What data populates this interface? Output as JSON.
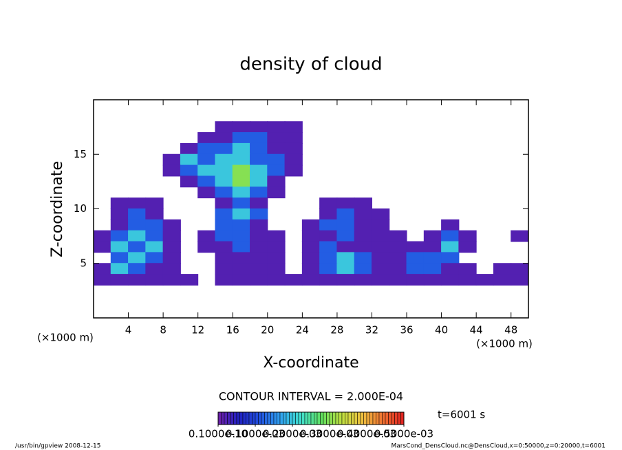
{
  "chart_data": {
    "type": "contour",
    "title": "density of cloud",
    "xlabel": "X-coordinate",
    "ylabel": "Z-coordinate",
    "xunit": "(×1000 m)",
    "yunit": "(×1000 m)",
    "xlim": [
      0,
      50
    ],
    "ylim": [
      0,
      20
    ],
    "xticks": [
      4,
      8,
      12,
      16,
      20,
      24,
      28,
      32,
      36,
      40,
      44,
      48
    ],
    "yticks": [
      5,
      10,
      15
    ],
    "x": [
      1,
      3,
      5,
      7,
      9,
      11,
      13,
      15,
      17,
      19,
      21,
      23,
      25,
      27,
      29,
      31,
      33,
      35,
      37,
      39,
      41,
      43,
      45,
      47,
      49
    ],
    "y": [
      17.5,
      16.5,
      15.5,
      14.5,
      13.5,
      12.5,
      11.5,
      10.5,
      9.5,
      8.5,
      7.5,
      6.5,
      5.5,
      4.5,
      3.5
    ],
    "z": [
      [
        null,
        null,
        null,
        null,
        null,
        null,
        null,
        2e-05,
        2e-05,
        2e-05,
        2e-05,
        2e-05,
        null,
        null,
        null,
        null,
        null,
        null,
        null,
        null,
        null,
        null,
        null,
        null,
        null
      ],
      [
        null,
        null,
        null,
        null,
        null,
        null,
        2e-05,
        2e-05,
        0.00012,
        0.00012,
        2e-05,
        2e-05,
        null,
        null,
        null,
        null,
        null,
        null,
        null,
        null,
        null,
        null,
        null,
        null,
        null
      ],
      [
        null,
        null,
        null,
        null,
        null,
        2e-05,
        0.00012,
        0.00012,
        0.0002,
        0.00012,
        2e-05,
        2e-05,
        null,
        null,
        null,
        null,
        null,
        null,
        null,
        null,
        null,
        null,
        null,
        null,
        null
      ],
      [
        null,
        null,
        null,
        null,
        2e-05,
        0.0002,
        0.00012,
        0.0002,
        0.0002,
        0.00012,
        0.00012,
        2e-05,
        null,
        null,
        null,
        null,
        null,
        null,
        null,
        null,
        null,
        null,
        null,
        null,
        null
      ],
      [
        null,
        null,
        null,
        null,
        2e-05,
        0.00012,
        0.0002,
        0.0002,
        0.0003,
        0.0002,
        0.00012,
        2e-05,
        null,
        null,
        null,
        null,
        null,
        null,
        null,
        null,
        null,
        null,
        null,
        null,
        null
      ],
      [
        null,
        null,
        null,
        null,
        null,
        2e-05,
        0.00012,
        0.0002,
        0.0003,
        0.0002,
        2e-05,
        null,
        null,
        null,
        null,
        null,
        null,
        null,
        null,
        null,
        null,
        null,
        null,
        null,
        null
      ],
      [
        null,
        null,
        null,
        null,
        null,
        null,
        2e-05,
        0.00012,
        0.0002,
        0.00012,
        2e-05,
        null,
        null,
        null,
        null,
        null,
        null,
        null,
        null,
        null,
        null,
        null,
        null,
        null,
        null
      ],
      [
        null,
        2e-05,
        2e-05,
        2e-05,
        null,
        null,
        null,
        2e-05,
        0.00012,
        2e-05,
        null,
        null,
        null,
        2e-05,
        2e-05,
        2e-05,
        null,
        null,
        null,
        null,
        null,
        null,
        null,
        null,
        null
      ],
      [
        null,
        2e-05,
        0.00012,
        2e-05,
        null,
        null,
        null,
        0.00012,
        0.0002,
        0.00012,
        null,
        null,
        null,
        2e-05,
        0.00012,
        2e-05,
        2e-05,
        null,
        null,
        null,
        null,
        null,
        null,
        null,
        null
      ],
      [
        null,
        2e-05,
        0.00012,
        0.00012,
        2e-05,
        null,
        null,
        0.00012,
        0.00012,
        2e-05,
        null,
        null,
        2e-05,
        0.00012,
        0.00012,
        2e-05,
        2e-05,
        null,
        null,
        null,
        2e-05,
        null,
        null,
        null,
        null
      ],
      [
        2e-05,
        0.00012,
        0.0002,
        0.00012,
        2e-05,
        null,
        2e-05,
        0.00012,
        0.00012,
        2e-05,
        2e-05,
        null,
        2e-05,
        2e-05,
        0.00012,
        2e-05,
        2e-05,
        2e-05,
        null,
        2e-05,
        0.00012,
        2e-05,
        null,
        null,
        2e-05
      ],
      [
        2e-05,
        0.0002,
        0.00012,
        0.0002,
        2e-05,
        null,
        2e-05,
        2e-05,
        0.00012,
        2e-05,
        2e-05,
        null,
        2e-05,
        0.00012,
        2e-05,
        2e-05,
        2e-05,
        2e-05,
        2e-05,
        2e-05,
        0.0002,
        2e-05,
        null,
        null,
        null
      ],
      [
        null,
        0.00012,
        0.0002,
        0.00012,
        2e-05,
        null,
        null,
        2e-05,
        2e-05,
        2e-05,
        2e-05,
        null,
        2e-05,
        0.00012,
        0.0002,
        0.00012,
        2e-05,
        2e-05,
        0.00012,
        0.00012,
        0.00012,
        null,
        null,
        null,
        null
      ],
      [
        2e-05,
        0.0002,
        0.00012,
        2e-05,
        2e-05,
        null,
        null,
        2e-05,
        2e-05,
        2e-05,
        2e-05,
        null,
        2e-05,
        0.00012,
        0.0002,
        0.00012,
        2e-05,
        2e-05,
        0.00012,
        0.00012,
        2e-05,
        2e-05,
        null,
        2e-05,
        2e-05
      ],
      [
        2e-05,
        2e-05,
        2e-05,
        2e-05,
        2e-05,
        2e-05,
        null,
        2e-05,
        2e-05,
        2e-05,
        2e-05,
        2e-05,
        2e-05,
        2e-05,
        2e-05,
        2e-05,
        2e-05,
        2e-05,
        2e-05,
        2e-05,
        2e-05,
        2e-05,
        2e-05,
        2e-05,
        2e-05
      ]
    ],
    "colorbar": {
      "lim": [
        0,
        0.0005
      ],
      "colors": [
        "#7020a8",
        "#2020c0",
        "#2050e0",
        "#30a0f0",
        "#40e0d0",
        "#60e060",
        "#c0e040",
        "#f0c040",
        "#f07030",
        "#e02020"
      ],
      "ticks": [
        {
          "value": 1e-11,
          "label": "0.1000e-10"
        },
        {
          "value": 0.0001,
          "label": "0.1000e-03"
        },
        {
          "value": 0.0002,
          "label": "0.2000e-03"
        },
        {
          "value": 0.0003,
          "label": "0.3000e-03"
        },
        {
          "value": 0.0004,
          "label": "0.4000e-03"
        },
        {
          "value": 0.0005,
          "label": "0.5000e-03"
        }
      ]
    },
    "contour_interval": "CONTOUR INTERVAL = 2.000E-04",
    "time_label": "t=6001 s",
    "footer_left": "/usr/bin/gpview   2008-12-15",
    "footer_right": "MarsCond_DensCloud.nc@DensCloud,x=0:50000,z=0:20000,t=6001"
  }
}
